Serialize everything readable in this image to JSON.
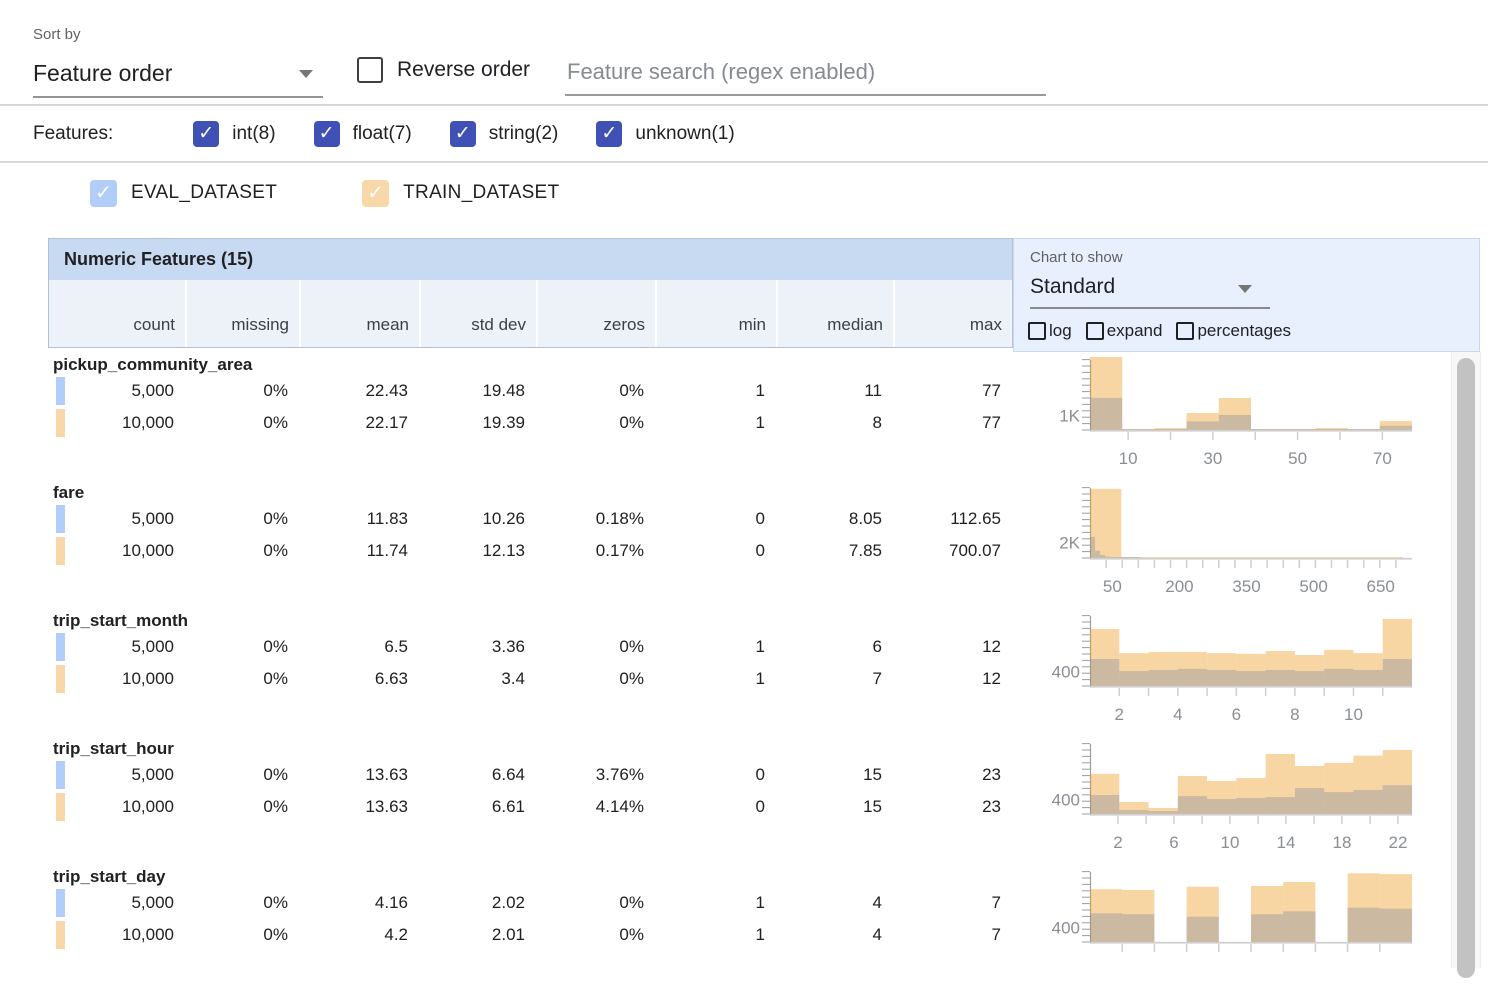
{
  "colors": {
    "accent": "#3f51b5",
    "eval_swatch": "#b3cdf9",
    "train_swatch": "#f8d8a8",
    "header_bg": "#c8daf1",
    "subheader_bg": "#edf2f9",
    "panel_bg": "#e8f0fe"
  },
  "toolbar": {
    "sort_by_label": "Sort by",
    "sort_by_value": "Feature order",
    "reverse_order_label": "Reverse order",
    "reverse_order_checked": false,
    "search_placeholder": "Feature search (regex enabled)",
    "search_value": ""
  },
  "feature_filters": {
    "label": "Features:",
    "items": [
      {
        "label": "int(8)",
        "checked": true
      },
      {
        "label": "float(7)",
        "checked": true
      },
      {
        "label": "string(2)",
        "checked": true
      },
      {
        "label": "unknown(1)",
        "checked": true
      }
    ]
  },
  "datasets": [
    {
      "name": "EVAL_DATASET",
      "checked": true,
      "color": "#b3cdf9"
    },
    {
      "name": "TRAIN_DATASET",
      "checked": true,
      "color": "#f8d8a8"
    }
  ],
  "table": {
    "title": "Numeric Features (15)",
    "columns": [
      "count",
      "missing",
      "mean",
      "std dev",
      "zeros",
      "min",
      "median",
      "max"
    ]
  },
  "chart_controls": {
    "label": "Chart to show",
    "selected": "Standard",
    "options": [
      {
        "label": "log",
        "checked": false
      },
      {
        "label": "expand",
        "checked": false
      },
      {
        "label": "percentages",
        "checked": false
      }
    ]
  },
  "features": [
    {
      "name": "pickup_community_area",
      "rows": [
        {
          "dataset": "eval",
          "stats": [
            "5,000",
            "0%",
            "22.43",
            "19.48",
            "0%",
            "1",
            "11",
            "77"
          ]
        },
        {
          "dataset": "train",
          "stats": [
            "10,000",
            "0%",
            "22.17",
            "19.39",
            "0%",
            "1",
            "8",
            "77"
          ]
        }
      ]
    },
    {
      "name": "fare",
      "rows": [
        {
          "dataset": "eval",
          "stats": [
            "5,000",
            "0%",
            "11.83",
            "10.26",
            "0.18%",
            "0",
            "8.05",
            "112.65"
          ]
        },
        {
          "dataset": "train",
          "stats": [
            "10,000",
            "0%",
            "11.74",
            "12.13",
            "0.17%",
            "0",
            "7.85",
            "700.07"
          ]
        }
      ]
    },
    {
      "name": "trip_start_month",
      "rows": [
        {
          "dataset": "eval",
          "stats": [
            "5,000",
            "0%",
            "6.5",
            "3.36",
            "0%",
            "1",
            "6",
            "12"
          ]
        },
        {
          "dataset": "train",
          "stats": [
            "10,000",
            "0%",
            "6.63",
            "3.4",
            "0%",
            "1",
            "7",
            "12"
          ]
        }
      ]
    },
    {
      "name": "trip_start_hour",
      "rows": [
        {
          "dataset": "eval",
          "stats": [
            "5,000",
            "0%",
            "13.63",
            "6.64",
            "3.76%",
            "0",
            "15",
            "23"
          ]
        },
        {
          "dataset": "train",
          "stats": [
            "10,000",
            "0%",
            "13.63",
            "6.61",
            "4.14%",
            "0",
            "15",
            "23"
          ]
        }
      ]
    },
    {
      "name": "trip_start_day",
      "rows": [
        {
          "dataset": "eval",
          "stats": [
            "5,000",
            "0%",
            "4.16",
            "2.02",
            "0%",
            "1",
            "4",
            "7"
          ]
        },
        {
          "dataset": "train",
          "stats": [
            "10,000",
            "0%",
            "4.2",
            "2.01",
            "0%",
            "1",
            "4",
            "7"
          ]
        }
      ]
    }
  ],
  "chart_data": [
    {
      "type": "histogram-overlay",
      "feature": "pickup_community_area",
      "x_domain": [
        1,
        77
      ],
      "y_scale_max": 5000,
      "y_label": {
        "text": "1K",
        "value": 1000
      },
      "x_ticks": {
        "values": [
          10,
          20,
          30,
          40,
          50,
          60,
          70
        ],
        "labeled": [
          10,
          30,
          50,
          70
        ]
      },
      "series": [
        {
          "name": "EVAL_DATASET",
          "color": "rgba(66,133,244,0.40)",
          "bars": [
            {
              "x0": 1,
              "x1": 8.6,
              "count": 2200
            },
            {
              "x0": 8.6,
              "x1": 16.2,
              "count": 35
            },
            {
              "x0": 16.2,
              "x1": 23.8,
              "count": 70
            },
            {
              "x0": 23.8,
              "x1": 31.4,
              "count": 585
            },
            {
              "x0": 31.4,
              "x1": 39,
              "count": 1030
            },
            {
              "x0": 39,
              "x1": 46.6,
              "count": 15
            },
            {
              "x0": 46.6,
              "x1": 54.2,
              "count": 15
            },
            {
              "x0": 54.2,
              "x1": 61.8,
              "count": 70
            },
            {
              "x0": 61.8,
              "x1": 69.4,
              "count": 15
            },
            {
              "x0": 69.4,
              "x1": 77,
              "count": 290
            }
          ]
        },
        {
          "name": "TRAIN_DATASET",
          "color": "rgba(237,157,38,0.42)",
          "bars": [
            {
              "x0": 1,
              "x1": 8.6,
              "count": 5000
            },
            {
              "x0": 8.6,
              "x1": 16.2,
              "count": 70
            },
            {
              "x0": 16.2,
              "x1": 23.8,
              "count": 140
            },
            {
              "x0": 23.8,
              "x1": 31.4,
              "count": 1165
            },
            {
              "x0": 31.4,
              "x1": 39,
              "count": 2190
            },
            {
              "x0": 39,
              "x1": 46.6,
              "count": 20
            },
            {
              "x0": 46.6,
              "x1": 54.2,
              "count": 20
            },
            {
              "x0": 54.2,
              "x1": 61.8,
              "count": 140
            },
            {
              "x0": 61.8,
              "x1": 69.4,
              "count": 20
            },
            {
              "x0": 69.4,
              "x1": 77,
              "count": 620
            }
          ]
        }
      ]
    },
    {
      "type": "histogram-overlay",
      "feature": "fare",
      "x_domain": [
        0,
        720
      ],
      "y_scale_max": 9500,
      "y_label": {
        "text": "2K",
        "value": 2000
      },
      "x_ticks": {
        "values": [
          36,
          72,
          108,
          144,
          180,
          216,
          252,
          288,
          324,
          360,
          396,
          432,
          468,
          504,
          540,
          576,
          612,
          648,
          684
        ],
        "labeled": [
          50,
          200,
          350,
          500,
          650
        ]
      },
      "series": [
        {
          "name": "EVAL_DATASET",
          "color": "rgba(66,133,244,0.40)",
          "bars": [
            {
              "x0": 0,
              "x1": 11.3,
              "count": 2750
            },
            {
              "x0": 11.3,
              "x1": 22.5,
              "count": 950
            },
            {
              "x0": 22.5,
              "x1": 33.8,
              "count": 400
            },
            {
              "x0": 33.8,
              "x1": 45.1,
              "count": 180
            },
            {
              "x0": 45.1,
              "x1": 56.3,
              "count": 90
            },
            {
              "x0": 56.3,
              "x1": 67.6,
              "count": 40
            },
            {
              "x0": 67.6,
              "x1": 78.9,
              "count": 30
            },
            {
              "x0": 78.9,
              "x1": 90.1,
              "count": 25
            },
            {
              "x0": 90.1,
              "x1": 101.4,
              "count": 20
            },
            {
              "x0": 101.4,
              "x1": 112.65,
              "count": 15
            }
          ]
        },
        {
          "name": "TRAIN_DATASET",
          "color": "rgba(237,157,38,0.42)",
          "bars": [
            {
              "x0": 0,
              "x1": 70,
              "count": 9000
            },
            {
              "x0": 70,
              "x1": 140,
              "count": 60
            },
            {
              "x0": 140,
              "x1": 210,
              "count": 15
            },
            {
              "x0": 210,
              "x1": 280,
              "count": 15
            },
            {
              "x0": 280,
              "x1": 350,
              "count": 15
            },
            {
              "x0": 350,
              "x1": 420,
              "count": 15
            },
            {
              "x0": 420,
              "x1": 490,
              "count": 15
            },
            {
              "x0": 490,
              "x1": 560,
              "count": 15
            },
            {
              "x0": 560,
              "x1": 630,
              "count": 15
            },
            {
              "x0": 630,
              "x1": 700,
              "count": 30
            }
          ]
        }
      ]
    },
    {
      "type": "histogram-overlay",
      "feature": "trip_start_month",
      "x_domain": [
        1,
        12
      ],
      "y_scale_max": 2000,
      "y_label": {
        "text": "400",
        "value": 400
      },
      "x_ticks": {
        "values": [
          2,
          3,
          4,
          5,
          6,
          7,
          8,
          9,
          10,
          11
        ],
        "labeled": [
          2,
          4,
          6,
          8,
          10
        ]
      },
      "series": [
        {
          "name": "EVAL_DATASET",
          "color": "rgba(66,133,244,0.40)",
          "bars": [
            {
              "x0": 1,
              "x1": 2,
              "count": 740
            },
            {
              "x0": 2,
              "x1": 3,
              "count": 410
            },
            {
              "x0": 3,
              "x1": 4,
              "count": 440
            },
            {
              "x0": 4,
              "x1": 5,
              "count": 470
            },
            {
              "x0": 5,
              "x1": 6,
              "count": 440
            },
            {
              "x0": 6,
              "x1": 7,
              "count": 410
            },
            {
              "x0": 7,
              "x1": 8,
              "count": 440
            },
            {
              "x0": 8,
              "x1": 9,
              "count": 410
            },
            {
              "x0": 9,
              "x1": 10,
              "count": 470
            },
            {
              "x0": 10,
              "x1": 11,
              "count": 440
            },
            {
              "x0": 11,
              "x1": 12,
              "count": 740
            }
          ]
        },
        {
          "name": "TRAIN_DATASET",
          "color": "rgba(237,157,38,0.42)",
          "bars": [
            {
              "x0": 1,
              "x1": 2,
              "count": 1560
            },
            {
              "x0": 2,
              "x1": 3,
              "count": 900
            },
            {
              "x0": 3,
              "x1": 4,
              "count": 930
            },
            {
              "x0": 4,
              "x1": 5,
              "count": 930
            },
            {
              "x0": 5,
              "x1": 6,
              "count": 900
            },
            {
              "x0": 6,
              "x1": 7,
              "count": 880
            },
            {
              "x0": 7,
              "x1": 8,
              "count": 960
            },
            {
              "x0": 8,
              "x1": 9,
              "count": 850
            },
            {
              "x0": 9,
              "x1": 10,
              "count": 990
            },
            {
              "x0": 10,
              "x1": 11,
              "count": 900
            },
            {
              "x0": 11,
              "x1": 12,
              "count": 1840
            }
          ]
        }
      ]
    },
    {
      "type": "histogram-overlay",
      "feature": "trip_start_hour",
      "x_domain": [
        0,
        23
      ],
      "y_scale_max": 2000,
      "y_label": {
        "text": "400",
        "value": 400
      },
      "x_ticks": {
        "values": [
          2,
          4,
          6,
          8,
          10,
          12,
          14,
          16,
          18,
          20,
          22
        ],
        "labeled": [
          2,
          6,
          10,
          14,
          18,
          22
        ]
      },
      "series": [
        {
          "name": "EVAL_DATASET",
          "color": "rgba(66,133,244,0.40)",
          "bars": [
            {
              "x0": 0,
              "x1": 2.09,
              "count": 520
            },
            {
              "x0": 2.09,
              "x1": 4.18,
              "count": 110
            },
            {
              "x0": 4.18,
              "x1": 6.27,
              "count": 80
            },
            {
              "x0": 6.27,
              "x1": 8.36,
              "count": 490
            },
            {
              "x0": 8.36,
              "x1": 10.45,
              "count": 410
            },
            {
              "x0": 10.45,
              "x1": 12.55,
              "count": 440
            },
            {
              "x0": 12.55,
              "x1": 14.64,
              "count": 465
            },
            {
              "x0": 14.64,
              "x1": 16.73,
              "count": 710
            },
            {
              "x0": 16.73,
              "x1": 18.82,
              "count": 600
            },
            {
              "x0": 18.82,
              "x1": 20.91,
              "count": 660
            },
            {
              "x0": 20.91,
              "x1": 23,
              "count": 790
            }
          ]
        },
        {
          "name": "TRAIN_DATASET",
          "color": "rgba(237,157,38,0.42)",
          "bars": [
            {
              "x0": 0,
              "x1": 2.09,
              "count": 1100
            },
            {
              "x0": 2.09,
              "x1": 4.18,
              "count": 330
            },
            {
              "x0": 4.18,
              "x1": 6.27,
              "count": 165
            },
            {
              "x0": 6.27,
              "x1": 8.36,
              "count": 1040
            },
            {
              "x0": 8.36,
              "x1": 10.45,
              "count": 905
            },
            {
              "x0": 10.45,
              "x1": 12.55,
              "count": 985
            },
            {
              "x0": 12.55,
              "x1": 14.64,
              "count": 1645
            },
            {
              "x0": 14.64,
              "x1": 16.73,
              "count": 1315
            },
            {
              "x0": 16.73,
              "x1": 18.82,
              "count": 1400
            },
            {
              "x0": 18.82,
              "x1": 20.91,
              "count": 1600
            },
            {
              "x0": 20.91,
              "x1": 23,
              "count": 1755
            }
          ]
        }
      ]
    },
    {
      "type": "histogram-overlay",
      "feature": "trip_start_day",
      "x_domain": [
        1,
        7
      ],
      "y_scale_max": 2000,
      "y_label": {
        "text": "400",
        "value": 400
      },
      "x_ticks": {
        "values": [
          1.6,
          2.2,
          2.8,
          3.4,
          4.0,
          4.6,
          5.2,
          5.8,
          6.4
        ],
        "labeled": []
      },
      "series": [
        {
          "name": "EVAL_DATASET",
          "color": "rgba(66,133,244,0.40)",
          "bars": [
            {
              "x0": 1,
              "x1": 1.6,
              "count": 785
            },
            {
              "x0": 1.6,
              "x1": 2.2,
              "count": 760
            },
            {
              "x0": 2.8,
              "x1": 3.4,
              "count": 695
            },
            {
              "x0": 4.0,
              "x1": 4.6,
              "count": 760
            },
            {
              "x0": 4.6,
              "x1": 5.2,
              "count": 840
            },
            {
              "x0": 5.8,
              "x1": 6.4,
              "count": 940
            },
            {
              "x0": 6.4,
              "x1": 7.0,
              "count": 915
            }
          ]
        },
        {
          "name": "TRAIN_DATASET",
          "color": "rgba(237,157,38,0.42)",
          "bars": [
            {
              "x0": 1,
              "x1": 1.6,
              "count": 1445
            },
            {
              "x0": 1.6,
              "x1": 2.2,
              "count": 1425
            },
            {
              "x0": 2.8,
              "x1": 3.4,
              "count": 1515
            },
            {
              "x0": 4.0,
              "x1": 4.6,
              "count": 1535
            },
            {
              "x0": 4.6,
              "x1": 5.2,
              "count": 1645
            },
            {
              "x0": 5.8,
              "x1": 6.4,
              "count": 1880
            },
            {
              "x0": 6.4,
              "x1": 7.0,
              "count": 1860
            }
          ]
        }
      ]
    }
  ]
}
